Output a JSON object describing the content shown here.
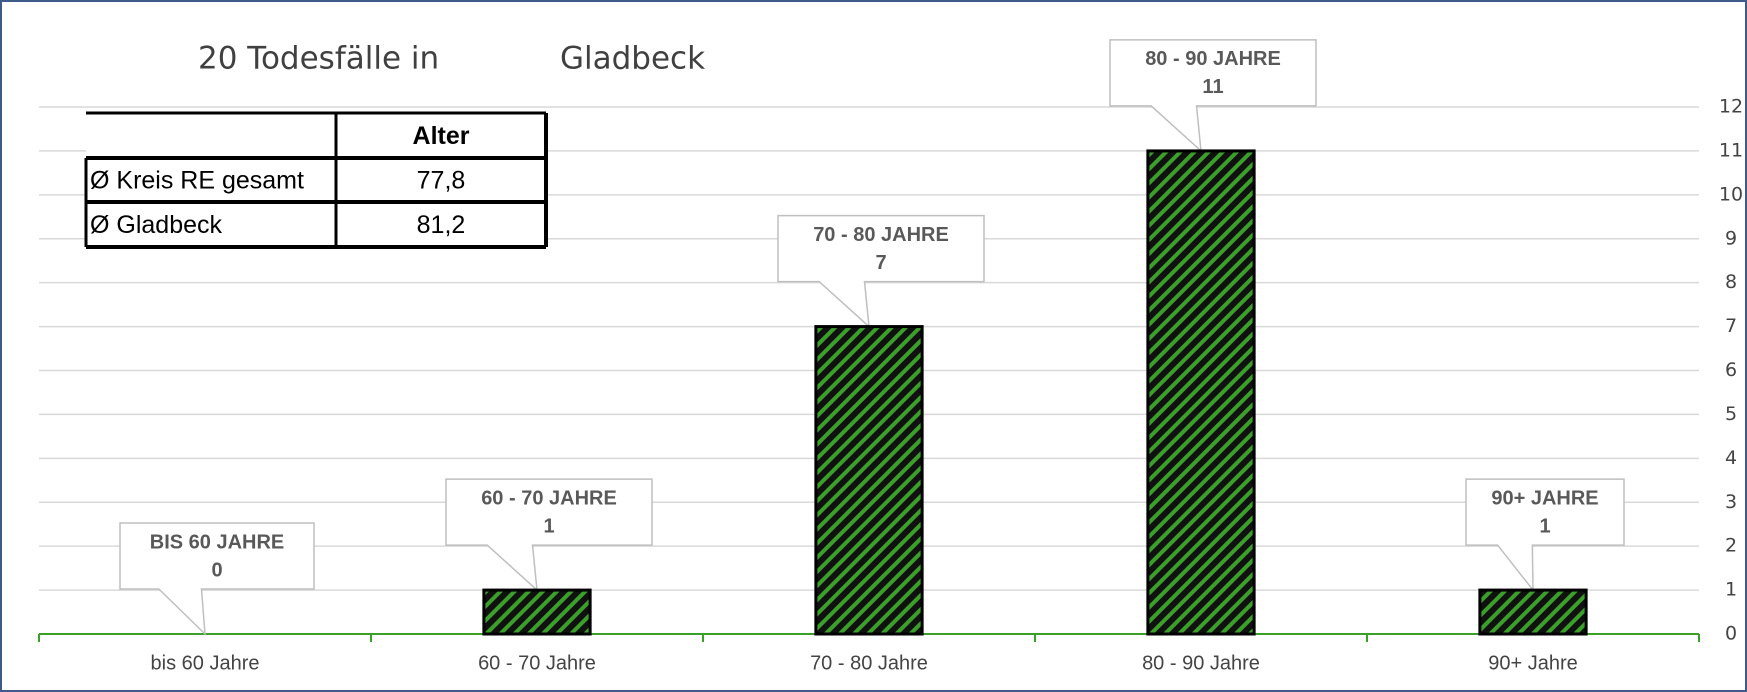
{
  "chart_data": {
    "type": "bar",
    "title_parts": [
      "20 Todesfälle  in",
      "Gladbeck"
    ],
    "categories": [
      "bis 60 Jahre",
      "60 - 70 Jahre",
      "70 - 80 Jahre",
      "80 - 90 Jahre",
      "90+ Jahre"
    ],
    "callout_titles": [
      "BIS 60 JAHRE",
      "60 - 70 JAHRE",
      "70 - 80 JAHRE",
      "80 - 90 JAHRE",
      "90+ JAHRE"
    ],
    "values": [
      0,
      1,
      7,
      11,
      1
    ],
    "color": "#3aa02a",
    "ylim": [
      0,
      12
    ],
    "yticks": [
      0,
      1,
      2,
      3,
      4,
      5,
      6,
      7,
      8,
      9,
      10,
      11,
      12
    ],
    "grid": true,
    "y_axis_side": "right",
    "table": {
      "header": "Alter",
      "rows": [
        [
          "Ø Kreis RE gesamt",
          "77,8"
        ],
        [
          "Ø Gladbeck",
          "81,2"
        ]
      ]
    }
  }
}
